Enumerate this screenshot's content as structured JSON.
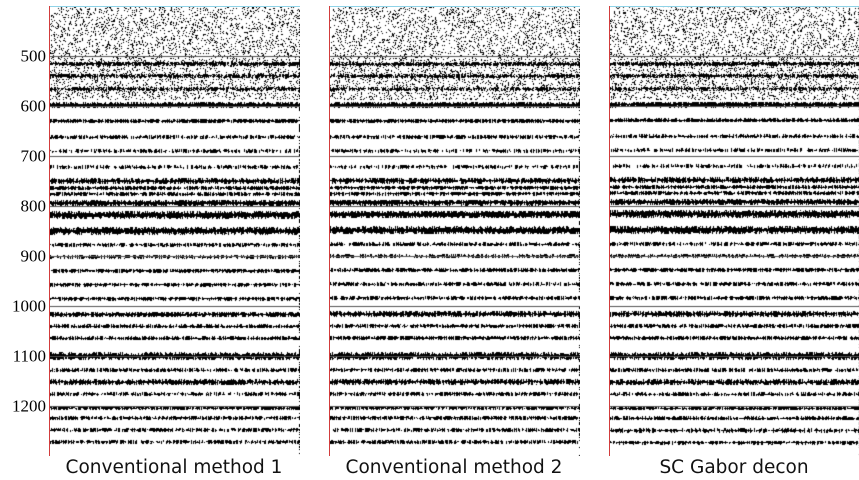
{
  "axis": {
    "ticks": [
      "500",
      "600",
      "700",
      "800",
      "900",
      "1000",
      "1100",
      "1200"
    ]
  },
  "panels": [
    {
      "caption": "Conventional method 1"
    },
    {
      "caption": "Conventional method 2"
    },
    {
      "caption": "SC Gabor decon"
    }
  ],
  "colors": {
    "trace": "#000000",
    "background": "#ffffff",
    "top_border": "#8fd3e8",
    "left_border": "#d23c3c",
    "gridline": "#555555"
  },
  "icons": [
    "seismic-section-image"
  ]
}
